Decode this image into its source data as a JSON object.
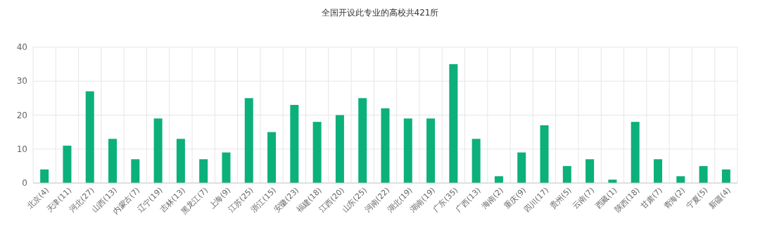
{
  "chart_data": {
    "type": "bar",
    "title": "全国开设此专业的高校共421所",
    "categories": [
      "北京(4)",
      "天津(11)",
      "河北(27)",
      "山西(13)",
      "内蒙古(7)",
      "辽宁(19)",
      "吉林(13)",
      "黑龙江(7)",
      "上海(9)",
      "江苏(25)",
      "浙江(15)",
      "安徽(23)",
      "福建(18)",
      "江西(20)",
      "山东(25)",
      "河南(22)",
      "湖北(19)",
      "湖南(19)",
      "广东(35)",
      "广西(13)",
      "海南(2)",
      "重庆(9)",
      "四川(17)",
      "贵州(5)",
      "云南(7)",
      "西藏(1)",
      "陕西(18)",
      "甘肃(7)",
      "青海(2)",
      "宁夏(5)",
      "新疆(4)"
    ],
    "values": [
      4,
      11,
      27,
      13,
      7,
      19,
      13,
      7,
      9,
      25,
      15,
      23,
      18,
      20,
      25,
      22,
      19,
      19,
      35,
      13,
      2,
      9,
      17,
      5,
      7,
      1,
      18,
      7,
      2,
      5,
      4
    ],
    "color": "#0cb07b",
    "ylim": [
      0,
      40
    ],
    "yticks": [
      0,
      10,
      20,
      30,
      40
    ],
    "grid": true
  }
}
